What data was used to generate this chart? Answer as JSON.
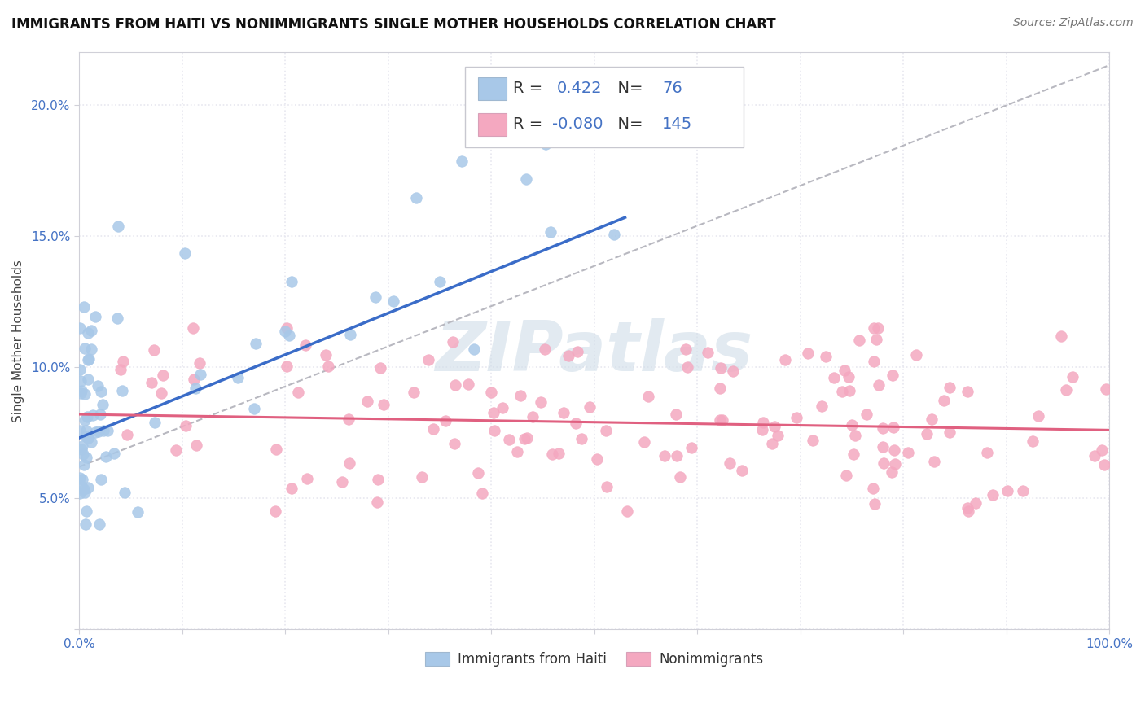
{
  "title": "IMMIGRANTS FROM HAITI VS NONIMMIGRANTS SINGLE MOTHER HOUSEHOLDS CORRELATION CHART",
  "source": "Source: ZipAtlas.com",
  "ylabel": "Single Mother Households",
  "xlim": [
    0.0,
    1.0
  ],
  "ylim": [
    0.0,
    0.22
  ],
  "haiti_color": "#a8c8e8",
  "nonimmigrant_color": "#f4a8c0",
  "haiti_R": 0.422,
  "haiti_N": 76,
  "nonimmigrant_R": -0.08,
  "nonimmigrant_N": 145,
  "haiti_line_color": "#3a6cc8",
  "nonimmigrant_line_color": "#e06080",
  "ref_line_color": "#b8b8c0",
  "watermark": "ZIPatlas",
  "background_color": "#ffffff",
  "grid_color": "#e8e8f0",
  "title_fontsize": 12,
  "tick_fontsize": 11,
  "tick_color": "#4472c4",
  "legend_r_color": "#4472c4",
  "legend_fontsize": 14
}
